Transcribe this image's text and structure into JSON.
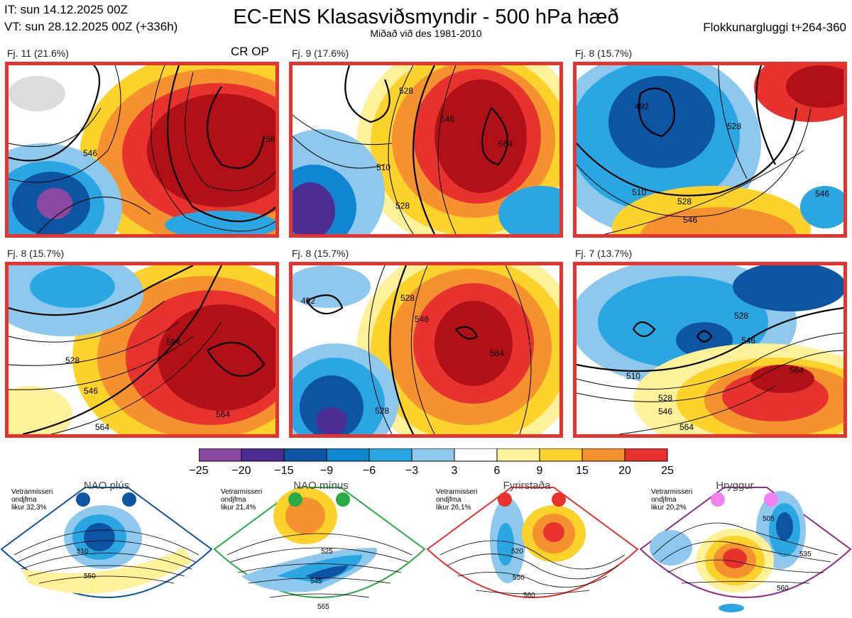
{
  "header": {
    "it": "IT: sun 14.12.2025 00Z",
    "vt": "VT: sun 28.12.2025 00Z  (+336h)",
    "title": "EC-ENS Klasasviðsmyndir - 500 hPa hæð",
    "subtitle": "Miðað við des 1981-2010",
    "window": "Flokkunargluggi t+264-360"
  },
  "cr_op": "CR OP",
  "clusters": [
    {
      "label": "Fj. 11 (21.6%)",
      "contours": [
        "546",
        "56"
      ]
    },
    {
      "label": "Fj. 9 (17.6%)",
      "contours": [
        "528",
        "546",
        "510",
        "528",
        "564"
      ]
    },
    {
      "label": "Fj. 8 (15.7%)",
      "contours": [
        "492",
        "528",
        "510",
        "528",
        "546",
        "546"
      ]
    },
    {
      "label": "Fj. 8 (15.7%)",
      "contours": [
        "528",
        "546",
        "564",
        "564",
        "564"
      ]
    },
    {
      "label": "Fj. 8 (15.7%)",
      "contours": [
        "492",
        "528",
        "546",
        "564",
        "528"
      ]
    },
    {
      "label": "Fj. 7 (13.7%)",
      "contours": [
        "510",
        "528",
        "546",
        "564",
        "528",
        "546",
        "564"
      ]
    }
  ],
  "colorbar": {
    "ticks": [
      "−25",
      "−20",
      "−15",
      "−9",
      "−6",
      "−3",
      "3",
      "6",
      "9",
      "15",
      "20",
      "25"
    ],
    "colors": [
      "#8b48a0",
      "#4c2e92",
      "#0d54a3",
      "#0f86cf",
      "#2aa7e2",
      "#8ec8ec",
      "#ffffff",
      "#fff19a",
      "#fdd22a",
      "#f6912f",
      "#e8322e",
      "#b11016"
    ]
  },
  "regimes": [
    {
      "name": "NAO plús",
      "info": "Vetrarmisseri\nondjfma\nlikur 32,3%",
      "color": "#0d54a3",
      "contours": [
        "510",
        "550"
      ]
    },
    {
      "name": "NAO mínus",
      "info": "Vetrarmisseri\nondjfma\nlikur 21,4%",
      "color": "#2bab47",
      "contours": [
        "525",
        "545",
        "565"
      ]
    },
    {
      "name": "Fyrirstaða",
      "info": "Vetrarmisseri\nondjfma\nlikur 26,1%",
      "color": "#e8322e",
      "contours": [
        "520",
        "550",
        "560"
      ]
    },
    {
      "name": "Hryggur",
      "info": "Vetrarmisseri\nondjfma\nlikur 20,2%",
      "color": "#8e2d8e",
      "dot_color": "#ee82ee",
      "contours": [
        "505",
        "535",
        "560"
      ]
    }
  ]
}
